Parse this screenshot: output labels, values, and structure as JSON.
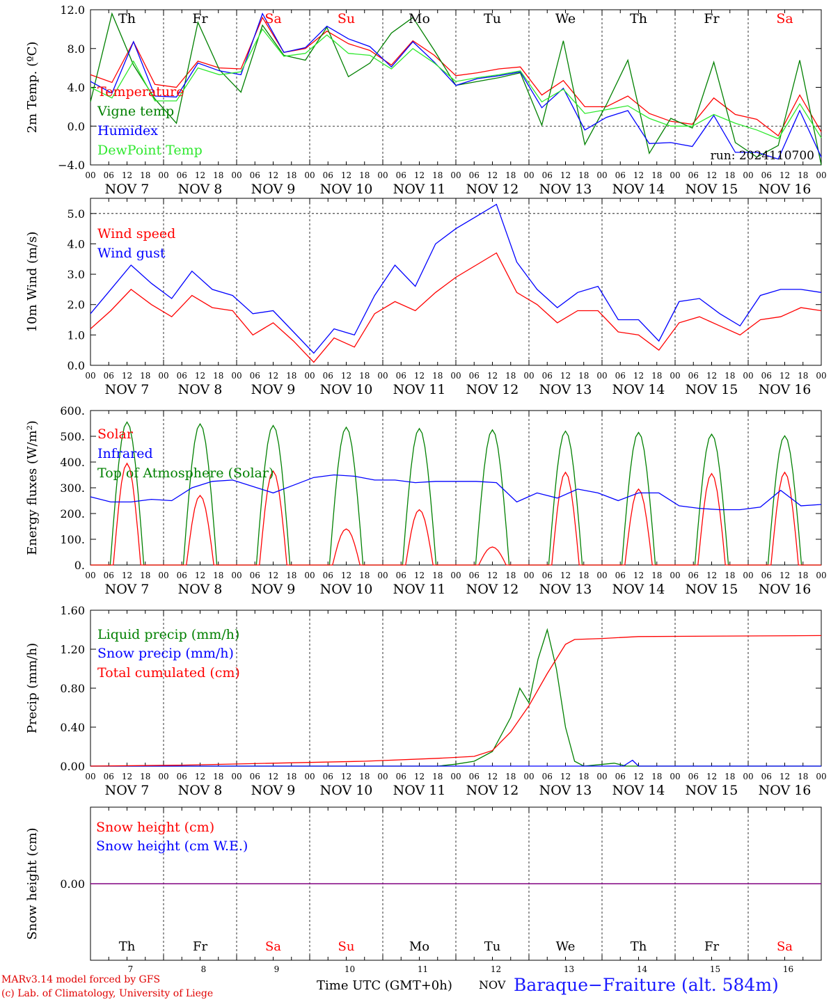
{
  "colors": {
    "red": "#ff0000",
    "green": "#008000",
    "blue": "#0000ff",
    "lightgreen": "#2ee82e",
    "purple": "#800080",
    "weekend": "#ff0000",
    "text": "#000000",
    "station": "#1a1aff"
  },
  "days": [
    "Th",
    "Fr",
    "Sa",
    "Su",
    "Mo",
    "Tu",
    "We",
    "Th",
    "Fr",
    "Sa"
  ],
  "weekend_flags": [
    false,
    false,
    true,
    true,
    false,
    false,
    false,
    false,
    false,
    true
  ],
  "dates": [
    "NOV  7",
    "NOV  8",
    "NOV  9",
    "NOV 10",
    "NOV 11",
    "NOV 12",
    "NOV 13",
    "NOV 14",
    "NOV 15",
    "NOV 16"
  ],
  "date_numbers": [
    "7",
    "8",
    "9",
    "10",
    "11",
    "12",
    "13",
    "14",
    "15",
    "16"
  ],
  "hour_labels": [
    "00",
    "06",
    "12",
    "18"
  ],
  "run_label": "run: 2024110700",
  "footer": {
    "credit_line1": "MARv3.14 model forced by GFS",
    "credit_line2": "(c) Lab. of Climatology, University of Liege",
    "x_caption": "Time UTC (GMT+0h)",
    "x_unit": "NOV",
    "station": "Baraque−Fraiture (alt. 584m)"
  },
  "chart_data": [
    {
      "type": "line",
      "ylabel": "2m Temp. (ºC)",
      "ylim": [
        -4,
        12
      ],
      "yticks": [
        "−4.0",
        "0.0",
        "4.0",
        "8.0",
        "12.0"
      ],
      "ytick_values": [
        -4,
        0,
        4,
        8,
        12
      ],
      "ref_lines": [
        0
      ],
      "x_hours": [
        0,
        6,
        12,
        18,
        24,
        30,
        36,
        42,
        48,
        54,
        60,
        66,
        72,
        78,
        84,
        90,
        96,
        102,
        108,
        114,
        120,
        126,
        132,
        138,
        144,
        150,
        156,
        162,
        168,
        174,
        180,
        186,
        192,
        198,
        204,
        210,
        216,
        222,
        228,
        234,
        240
      ],
      "series": [
        {
          "name": "Temperature",
          "color": "red",
          "values": [
            5.3,
            4.5,
            8.7,
            4.3,
            4.0,
            6.7,
            6.0,
            5.9,
            11.2,
            7.6,
            8.0,
            9.8,
            8.5,
            7.8,
            6.3,
            8.8,
            7.3,
            5.2,
            5.5,
            5.9,
            6.1,
            3.2,
            4.7,
            2.0,
            2.0,
            3.1,
            1.3,
            0.5,
            0.2,
            2.9,
            1.2,
            0.7,
            -1.0,
            3.2,
            -0.6
          ]
        },
        {
          "name": "Vigne temp",
          "color": "green",
          "values": [
            2.5,
            11.6,
            6.3,
            2.8,
            0.3,
            10.7,
            5.8,
            3.5,
            10.4,
            7.3,
            6.8,
            10.2,
            5.1,
            6.5,
            9.6,
            11.2,
            7.8,
            4.2,
            4.6,
            5.0,
            5.5,
            0.1,
            8.8,
            -1.9,
            2.2,
            6.8,
            -2.8,
            0.8,
            -0.2,
            6.6,
            -1.7,
            -3.2,
            -2.0,
            6.8,
            -4.0
          ]
        },
        {
          "name": "Humidex",
          "color": "blue",
          "values": [
            4.6,
            3.4,
            8.7,
            3.1,
            3.0,
            6.5,
            5.7,
            5.3,
            11.6,
            7.6,
            8.1,
            10.3,
            9.0,
            8.2,
            6.1,
            8.7,
            6.6,
            4.2,
            4.9,
            5.2,
            5.6,
            1.9,
            3.9,
            -0.4,
            0.9,
            1.6,
            -1.8,
            -1.7,
            -2.1,
            1.1,
            -2.7,
            -2.7,
            -3.4,
            1.6,
            -3.2
          ]
        },
        {
          "name": "DewPoint Temp",
          "color": "lightgreen",
          "values": [
            4.0,
            2.9,
            6.7,
            2.6,
            2.6,
            6.0,
            5.3,
            5.6,
            10.0,
            7.2,
            7.5,
            9.4,
            7.5,
            7.3,
            5.9,
            8.0,
            6.5,
            4.6,
            5.0,
            5.3,
            5.7,
            2.5,
            3.8,
            1.3,
            1.7,
            2.1,
            0.8,
            0.0,
            0.0,
            1.2,
            0.3,
            -0.4,
            -1.3,
            2.3,
            -1.2
          ]
        }
      ],
      "legend": [
        "Temperature",
        "Vigne temp",
        "Humidex",
        "DewPoint Temp"
      ]
    },
    {
      "type": "line",
      "ylabel": "10m Wind (m/s)",
      "ylim": [
        0,
        5.5
      ],
      "yticks": [
        "0.0",
        "1.0",
        "2.0",
        "3.0",
        "4.0",
        "5.0"
      ],
      "ytick_values": [
        0,
        1,
        2,
        3,
        4,
        5
      ],
      "ref_lines": [
        5
      ],
      "series": [
        {
          "name": "Wind speed",
          "color": "red",
          "values": [
            1.2,
            1.8,
            2.5,
            2.0,
            1.6,
            2.3,
            1.9,
            1.8,
            1.0,
            1.4,
            0.8,
            0.1,
            0.9,
            0.6,
            1.7,
            2.1,
            1.8,
            2.4,
            2.9,
            3.3,
            3.7,
            2.4,
            2.0,
            1.4,
            1.8,
            1.8,
            1.1,
            1.0,
            0.5,
            1.4,
            1.6,
            1.3,
            1.0,
            1.5,
            1.6,
            1.9,
            1.8
          ]
        },
        {
          "name": "Wind gust",
          "color": "blue",
          "values": [
            1.7,
            2.5,
            3.3,
            2.7,
            2.2,
            3.1,
            2.5,
            2.3,
            1.7,
            1.8,
            1.1,
            0.4,
            1.2,
            1.0,
            2.3,
            3.3,
            2.6,
            4.0,
            4.5,
            4.9,
            5.3,
            3.4,
            2.5,
            1.9,
            2.4,
            2.6,
            1.5,
            1.5,
            0.8,
            2.1,
            2.2,
            1.7,
            1.3,
            2.3,
            2.5,
            2.5,
            2.4
          ]
        }
      ],
      "legend": [
        "Wind speed",
        "Wind gust"
      ]
    },
    {
      "type": "line",
      "ylabel": "Energy fluxes (W/m²)",
      "ylim": [
        0,
        600
      ],
      "yticks": [
        "0.",
        "100.",
        "200.",
        "300.",
        "400.",
        "500.",
        "600."
      ],
      "ytick_values": [
        0,
        100,
        200,
        300,
        400,
        500,
        600
      ],
      "series": [
        {
          "name": "Solar",
          "color": "red",
          "peaks": [
            395,
            270,
            365,
            140,
            215,
            70,
            360,
            295,
            355,
            360
          ]
        },
        {
          "name": "Infrared",
          "color": "blue",
          "values": [
            265,
            245,
            245,
            255,
            250,
            300,
            325,
            330,
            305,
            280,
            310,
            340,
            350,
            345,
            330,
            330,
            320,
            325,
            325,
            325,
            320,
            245,
            280,
            260,
            295,
            280,
            250,
            280,
            280,
            230,
            220,
            215,
            215,
            225,
            290,
            230,
            235
          ]
        },
        {
          "name": "Top of Atmosphere (Solar)",
          "color": "green",
          "peaks": [
            555,
            548,
            542,
            535,
            530,
            525,
            520,
            515,
            508,
            502
          ]
        }
      ],
      "legend": [
        "Solar",
        "Infrared",
        "Top of Atmosphere (Solar)"
      ]
    },
    {
      "type": "line",
      "ylabel": "Precip (mm/h)",
      "ylim": [
        0,
        1.6
      ],
      "yticks": [
        "0.00",
        "0.40",
        "0.80",
        "1.20",
        "1.60"
      ],
      "ytick_values": [
        0,
        0.4,
        0.8,
        1.2,
        1.6
      ],
      "series": [
        {
          "name": "Liquid precip (mm/h)",
          "color": "green",
          "points": [
            [
              0,
              0
            ],
            [
              114,
              0
            ],
            [
              120,
              0.02
            ],
            [
              126,
              0.05
            ],
            [
              132,
              0.15
            ],
            [
              138,
              0.5
            ],
            [
              141,
              0.8
            ],
            [
              144,
              0.65
            ],
            [
              147,
              1.1
            ],
            [
              150,
              1.4
            ],
            [
              153,
              1.0
            ],
            [
              156,
              0.4
            ],
            [
              159,
              0.05
            ],
            [
              162,
              0
            ],
            [
              172,
              0.03
            ],
            [
              176,
              0
            ],
            [
              240,
              0
            ]
          ]
        },
        {
          "name": "Snow precip (mm/h)",
          "color": "blue",
          "points": [
            [
              0,
              0
            ],
            [
              175,
              0
            ],
            [
              178,
              0.06
            ],
            [
              180,
              0
            ],
            [
              240,
              0
            ]
          ]
        },
        {
          "name": "Total cumulated (cm)",
          "color": "red",
          "points": [
            [
              0,
              0
            ],
            [
              30,
              0.01
            ],
            [
              60,
              0.03
            ],
            [
              90,
              0.05
            ],
            [
              114,
              0.08
            ],
            [
              126,
              0.1
            ],
            [
              132,
              0.16
            ],
            [
              138,
              0.35
            ],
            [
              144,
              0.62
            ],
            [
              150,
              0.95
            ],
            [
              156,
              1.25
            ],
            [
              159,
              1.3
            ],
            [
              168,
              1.31
            ],
            [
              180,
              1.33
            ],
            [
              240,
              1.34
            ]
          ]
        }
      ],
      "legend": [
        "Liquid precip (mm/h)",
        "Snow precip (mm/h)",
        "Total cumulated (cm)"
      ]
    },
    {
      "type": "line",
      "ylabel": "Snow height (cm)",
      "yticks": [
        "0.00"
      ],
      "ytick_values": [
        0
      ],
      "series": [
        {
          "name": "Snow height (cm)",
          "color": "red",
          "values": [
            0,
            0
          ]
        },
        {
          "name": "Snow height (cm W.E.)",
          "color": "blue",
          "values": [
            0,
            0
          ]
        }
      ],
      "legend": [
        "Snow height (cm)",
        "Snow height (cm W.E.)"
      ]
    }
  ]
}
